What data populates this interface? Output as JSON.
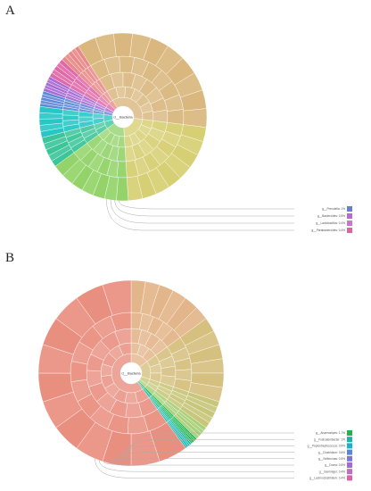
{
  "figure": {
    "panel_a": {
      "letter": "A",
      "center_label": "d__Bacteria",
      "legend": [
        {
          "label": "g__Prevotella: 1%",
          "color": "#6b7bd6"
        },
        {
          "label": "g__Bacteroides: 0.5%",
          "color": "#b46cd4"
        },
        {
          "label": "g__Lactobacillus: 0.4%",
          "color": "#c877c9"
        },
        {
          "label": "g__Parabacteroides: 0.4%",
          "color": "#d9689a"
        }
      ],
      "sectors": [
        {
          "color": "#d9b77e",
          "weight": 36
        },
        {
          "color": "#d6cf73",
          "weight": 22
        },
        {
          "color": "#93d36a",
          "weight": 16
        },
        {
          "color": "#3cc59a",
          "weight": 6
        },
        {
          "color": "#29c6c6",
          "weight": 6
        },
        {
          "color": "#5f88d6",
          "weight": 3
        },
        {
          "color": "#a86ad3",
          "weight": 3
        },
        {
          "color": "#e06aa9",
          "weight": 4
        },
        {
          "color": "#e88a8a",
          "weight": 4
        }
      ]
    },
    "panel_b": {
      "letter": "B",
      "center_label": "d__Bacteria",
      "legend": [
        {
          "label": "g__Anaerostipes: 1.7%",
          "color": "#19b64d"
        },
        {
          "label": "g__Fusicatenibacter: 1%",
          "color": "#18b5a6"
        },
        {
          "label": "g__Peptostreptococcus: 0.9%",
          "color": "#1ab3c6"
        },
        {
          "label": "g__Clostridium: 0.6%",
          "color": "#5b86d8"
        },
        {
          "label": "g__Sellimonas: 0.5%",
          "color": "#7f74d7"
        },
        {
          "label": "g__Dorea: 0.5%",
          "color": "#a16ad4"
        },
        {
          "label": "g__Gemmiger: 0.4%",
          "color": "#c26bc8"
        },
        {
          "label": "g__Lachnoclostridium: 0.4%",
          "color": "#d466a8"
        }
      ],
      "sectors": [
        {
          "color": "#e3b58a",
          "weight": 12
        },
        {
          "color": "#d6c07f",
          "weight": 12
        },
        {
          "color": "#c8c67a",
          "weight": 4
        },
        {
          "color": "#a9cf78",
          "weight": 2
        },
        {
          "color": "#19b64d",
          "weight": 1
        },
        {
          "color": "#16b7ae",
          "weight": 1
        },
        {
          "color": "#e98f80",
          "weight": 48
        }
      ]
    }
  }
}
